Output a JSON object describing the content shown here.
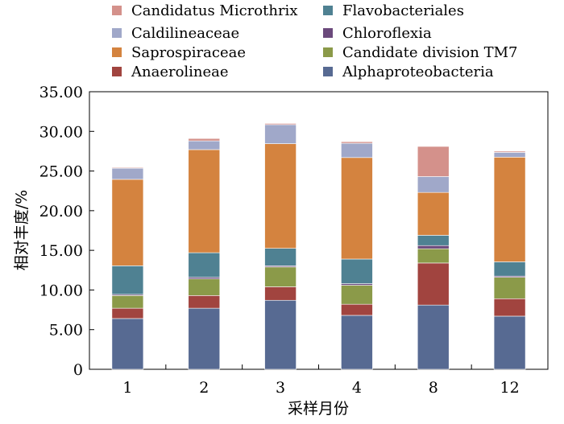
{
  "chart_data": {
    "type": "bar",
    "stacked": true,
    "title": "",
    "xlabel": "采样月份",
    "ylabel": "相对丰度/%",
    "ylim": [
      0,
      35
    ],
    "yticks": [
      "0",
      "5.00",
      "10.00",
      "15.00",
      "20.00",
      "25.00",
      "30.00",
      "35.00"
    ],
    "categories": [
      "1",
      "2",
      "3",
      "4",
      "8",
      "12"
    ],
    "grid": false,
    "legend_position": "top",
    "series": [
      {
        "name": "Alphaproteobacteria",
        "color": "#576a92",
        "values": [
          6.4,
          7.7,
          8.7,
          6.8,
          8.1,
          6.7
        ]
      },
      {
        "name": "Anaerolineae",
        "color": "#a1443f",
        "values": [
          1.3,
          1.6,
          1.7,
          1.4,
          5.3,
          2.2
        ]
      },
      {
        "name": "Candidate division TM7",
        "color": "#8b9a49",
        "values": [
          1.6,
          2.1,
          2.5,
          2.4,
          1.8,
          2.7
        ]
      },
      {
        "name": "Chloroflexia",
        "color": "#6b4a7c",
        "values": [
          0.15,
          0.2,
          0.15,
          0.2,
          0.4,
          0.15
        ]
      },
      {
        "name": "Flavobacteriales",
        "color": "#4f8192",
        "values": [
          3.6,
          3.1,
          2.2,
          3.1,
          1.3,
          1.8
        ]
      },
      {
        "name": "Saprospiraceae",
        "color": "#d4833f",
        "values": [
          10.9,
          13.0,
          13.2,
          12.8,
          5.4,
          13.2
        ]
      },
      {
        "name": "Caldilineaceae",
        "color": "#a0a8c9",
        "values": [
          1.4,
          1.1,
          2.4,
          1.8,
          2.0,
          0.6
        ]
      },
      {
        "name": "Candidatus Microthrix",
        "color": "#d4918b",
        "values": [
          0.1,
          0.3,
          0.15,
          0.2,
          3.8,
          0.15
        ]
      }
    ],
    "legend": [
      {
        "name": "Candidatus Microthrix",
        "color": "#d4918b"
      },
      {
        "name": "Flavobacteriales",
        "color": "#4f8192"
      },
      {
        "name": "Caldilineaceae",
        "color": "#a0a8c9"
      },
      {
        "name": "Chloroflexia",
        "color": "#6b4a7c"
      },
      {
        "name": "Saprospiraceae",
        "color": "#d4833f"
      },
      {
        "name": "Candidate division TM7",
        "color": "#8b9a49"
      },
      {
        "name": "Anaerolineae",
        "color": "#a1443f"
      },
      {
        "name": "Alphaproteobacteria",
        "color": "#576a92"
      }
    ]
  }
}
